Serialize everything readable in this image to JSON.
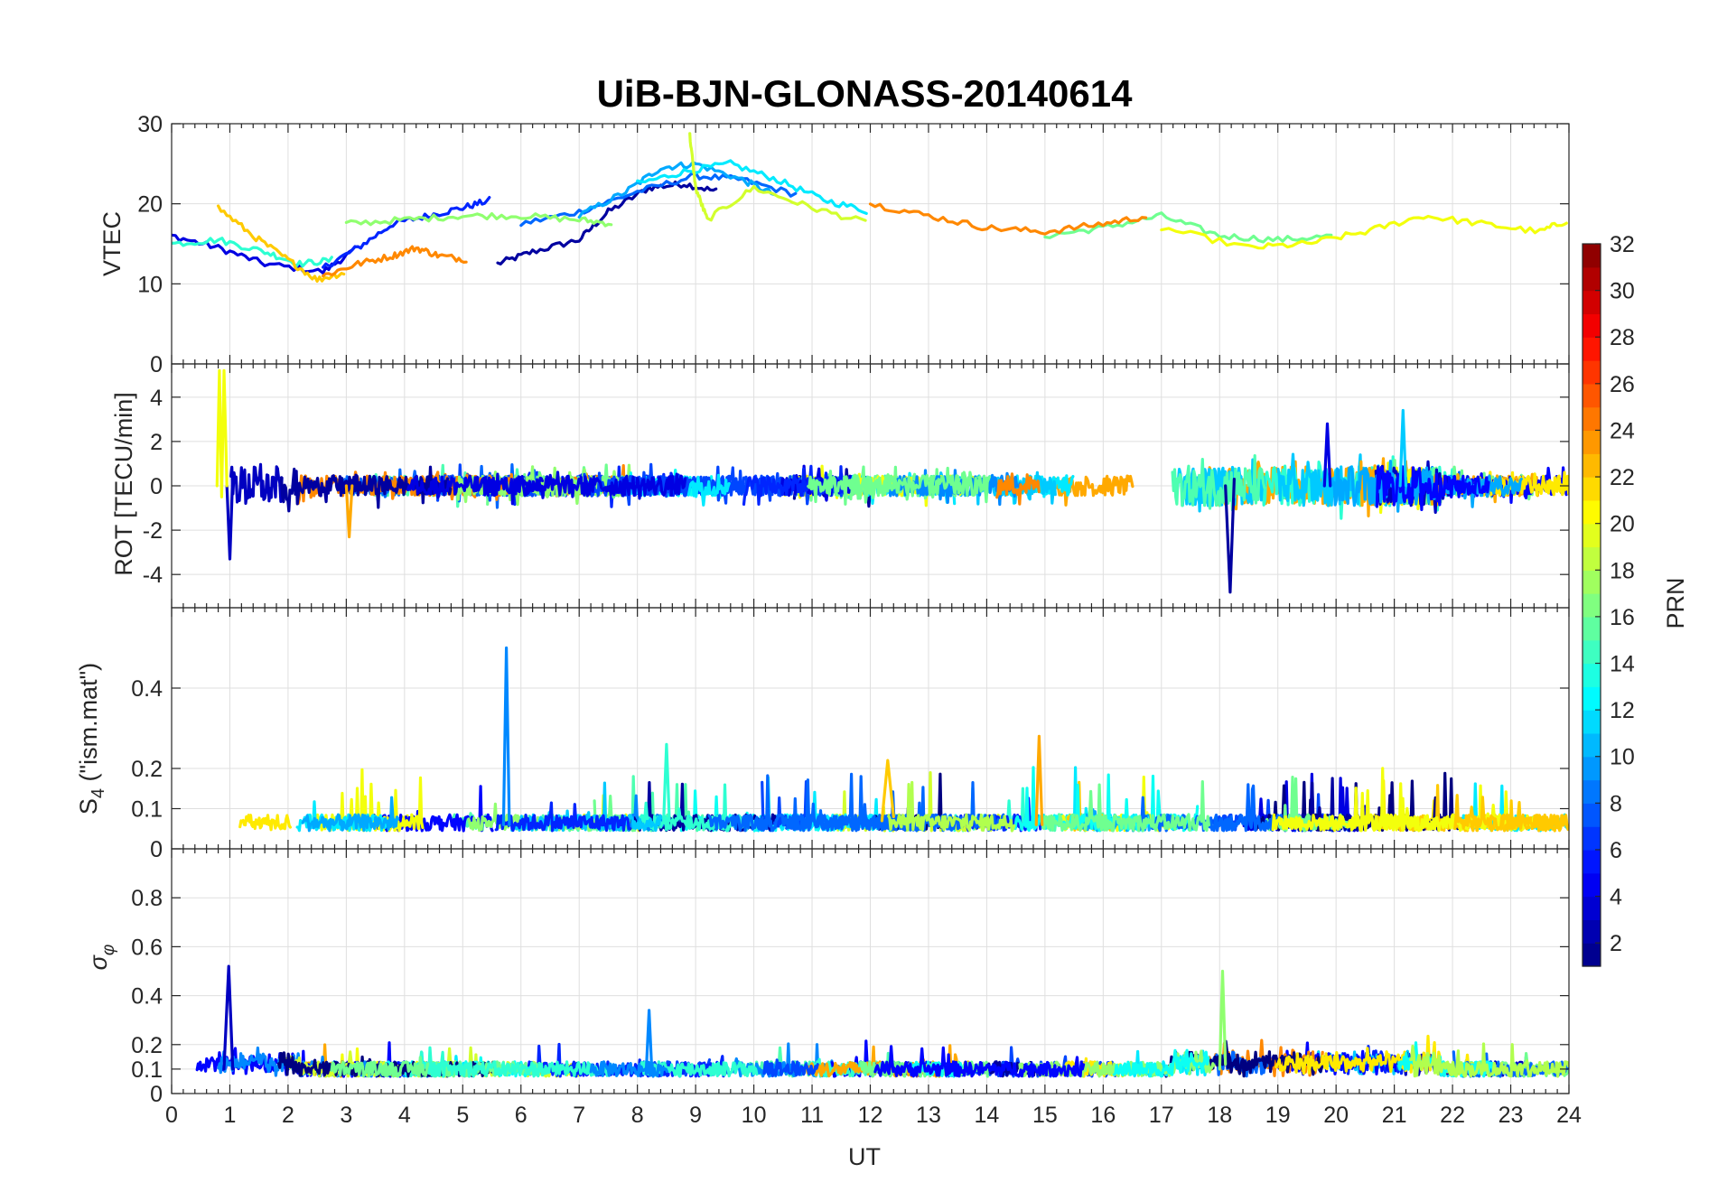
{
  "chart_data": [
    {
      "type": "line",
      "panel": "VTEC",
      "title": "UiB-BJN-GLONASS-20140614",
      "ylabel": "VTEC",
      "xlabel": "",
      "xlim": [
        0,
        24
      ],
      "ylim": [
        0,
        30
      ],
      "yticks": [
        0,
        10,
        20,
        30
      ],
      "series": [
        {
          "name": "PRN 2",
          "prn": 2,
          "x": [
            5.6,
            6.2,
            7.0,
            7.5,
            8.2,
            8.8,
            9.4
          ],
          "values": [
            12.5,
            14.0,
            15.5,
            19.0,
            22.0,
            22.5,
            21.5
          ]
        },
        {
          "name": "PRN 4",
          "prn": 4,
          "x": [
            0.0,
            0.8,
            1.6,
            2.6,
            3.2
          ],
          "values": [
            16.0,
            14.5,
            12.5,
            11.5,
            14.5
          ]
        },
        {
          "name": "PRN 6",
          "prn": 6,
          "x": [
            2.6,
            3.2,
            3.8,
            4.4,
            5.0,
            5.5
          ],
          "values": [
            12.0,
            14.5,
            17.5,
            18.5,
            19.5,
            20.5
          ]
        },
        {
          "name": "PRN 8",
          "prn": 8,
          "x": [
            6.0,
            7.0,
            8.0,
            9.0,
            9.8,
            10.8
          ],
          "values": [
            17.5,
            19.0,
            21.5,
            23.5,
            23.0,
            21.0
          ]
        },
        {
          "name": "PRN 10",
          "prn": 10,
          "x": [
            7.0,
            7.8,
            8.4,
            9.0,
            9.8,
            10.4
          ],
          "values": [
            18.5,
            21.5,
            24.5,
            25.0,
            23.0,
            21.0
          ]
        },
        {
          "name": "PRN 12",
          "prn": 12,
          "x": [
            8.0,
            8.8,
            9.6,
            10.4,
            11.2,
            12.0
          ],
          "values": [
            22.5,
            24.0,
            25.0,
            23.0,
            20.5,
            19.0
          ]
        },
        {
          "name": "PRN 14",
          "prn": 14,
          "x": [
            0.0,
            0.8,
            1.6,
            2.2,
            2.8
          ],
          "values": [
            15.0,
            15.5,
            14.0,
            12.5,
            13.0
          ]
        },
        {
          "name": "PRN 16",
          "prn": 16,
          "x": [
            15.0,
            16.0,
            17.0,
            18.0,
            19.0,
            20.0
          ],
          "values": [
            16.0,
            17.0,
            18.5,
            16.0,
            15.5,
            16.0
          ]
        },
        {
          "name": "PRN 17",
          "prn": 17,
          "x": [
            3.0,
            4.0,
            5.0,
            6.0,
            7.0,
            7.6
          ],
          "values": [
            17.5,
            18.0,
            18.5,
            18.5,
            18.0,
            17.5
          ]
        },
        {
          "name": "PRN 19",
          "prn": 19,
          "x": [
            8.9,
            9.0,
            9.2,
            10.0,
            11.0,
            12.0
          ],
          "values": [
            28.5,
            22.0,
            18.0,
            22.0,
            19.5,
            17.5
          ]
        },
        {
          "name": "PRN 20",
          "prn": 20,
          "x": [
            17.0,
            18.5,
            19.5,
            20.5,
            21.5,
            22.5,
            23.5,
            24.0
          ],
          "values": [
            17.0,
            14.5,
            15.0,
            16.5,
            18.5,
            17.5,
            16.5,
            18.0
          ]
        },
        {
          "name": "PRN 22",
          "prn": 22,
          "x": [
            0.8,
            1.4,
            2.0,
            2.5,
            3.0
          ],
          "values": [
            19.5,
            16.0,
            13.0,
            10.5,
            11.5
          ]
        },
        {
          "name": "PRN 24",
          "prn": 24,
          "x": [
            2.6,
            3.2,
            3.8,
            4.2,
            4.6,
            5.1
          ],
          "values": [
            11.0,
            12.5,
            13.5,
            14.5,
            13.5,
            13.0
          ]
        },
        {
          "name": "PRN 24b",
          "prn": 24,
          "x": [
            12.0,
            13.0,
            14.0,
            15.0,
            16.0,
            16.8
          ],
          "values": [
            20.0,
            18.5,
            17.0,
            16.5,
            17.5,
            18.5
          ]
        }
      ]
    },
    {
      "type": "line",
      "panel": "ROT",
      "ylabel": "ROT [TECU/min]",
      "xlim": [
        0,
        24
      ],
      "ylim": [
        -5.5,
        5.5
      ],
      "yticks": [
        -4,
        -2,
        0,
        2,
        4
      ],
      "series": [
        {
          "name": "PRN 3 spike",
          "prn": 3,
          "x": [
            0.95,
            1.0,
            1.05
          ],
          "values": [
            0.0,
            -3.3,
            0.5
          ]
        },
        {
          "name": "PRN 20 spike",
          "prn": 20,
          "x": [
            0.78,
            0.82,
            0.86,
            0.9,
            0.95
          ],
          "values": [
            0.0,
            5.2,
            -0.5,
            5.2,
            0.0
          ]
        },
        {
          "name": "PRN 2 spike",
          "prn": 2,
          "x": [
            18.1,
            18.18,
            18.25
          ],
          "values": [
            0.0,
            -4.8,
            0.3
          ]
        },
        {
          "name": "PRN 11 spike",
          "prn": 11,
          "x": [
            21.1,
            21.15,
            21.2
          ],
          "values": [
            0.0,
            3.4,
            0.0
          ]
        },
        {
          "name": "PRN 4 spike",
          "prn": 4,
          "x": [
            19.8,
            19.85,
            19.9
          ],
          "values": [
            0.0,
            2.8,
            0.0
          ]
        },
        {
          "name": "PRN 23 dip",
          "prn": 23,
          "x": [
            3.0,
            3.05,
            3.1
          ],
          "values": [
            0.0,
            -2.3,
            0.0
          ]
        }
      ]
    },
    {
      "type": "line",
      "panel": "S4",
      "ylabel": "S4 (\"ism.mat\")",
      "xlim": [
        0,
        24
      ],
      "ylim": [
        0,
        0.6
      ],
      "yticks": [
        0,
        0.1,
        0.2,
        0.4
      ],
      "series": [
        {
          "name": "PRN 9 peak",
          "prn": 9,
          "x": [
            5.7,
            5.75,
            5.8
          ],
          "values": [
            0.06,
            0.5,
            0.06
          ]
        },
        {
          "name": "PRN 23 peak",
          "prn": 23,
          "x": [
            14.85,
            14.9,
            14.95
          ],
          "values": [
            0.06,
            0.28,
            0.06
          ]
        },
        {
          "name": "PRN 22 peak",
          "prn": 22,
          "x": [
            12.2,
            12.3,
            12.4
          ],
          "values": [
            0.07,
            0.22,
            0.08
          ]
        },
        {
          "name": "PRN 14 peak",
          "prn": 14,
          "x": [
            8.45,
            8.5,
            8.55
          ],
          "values": [
            0.07,
            0.26,
            0.07
          ]
        }
      ]
    },
    {
      "type": "line",
      "panel": "sigma_phi",
      "ylabel": "σφ",
      "xlabel": "UT",
      "xlim": [
        0,
        24
      ],
      "ylim": [
        0,
        1
      ],
      "yticks": [
        0,
        0.1,
        0.2,
        0.4,
        0.6,
        0.8
      ],
      "series": [
        {
          "name": "PRN 3 peak",
          "prn": 3,
          "x": [
            0.9,
            0.98,
            1.05
          ],
          "values": [
            0.1,
            0.52,
            0.1
          ]
        },
        {
          "name": "PRN 17 peak",
          "prn": 17,
          "x": [
            18.0,
            18.05,
            18.1
          ],
          "values": [
            0.1,
            0.5,
            0.12
          ]
        },
        {
          "name": "PRN 9 peak",
          "prn": 9,
          "x": [
            8.15,
            8.2,
            8.25
          ],
          "values": [
            0.08,
            0.34,
            0.08
          ]
        }
      ]
    }
  ],
  "colorbar": {
    "label": "PRN",
    "min": 1,
    "max": 32,
    "ticks": [
      "2",
      "4",
      "6",
      "8",
      "10",
      "12",
      "14",
      "16",
      "18",
      "20",
      "22",
      "24",
      "26",
      "28",
      "30",
      "32"
    ]
  },
  "x_ticks": [
    "0",
    "1",
    "2",
    "3",
    "4",
    "5",
    "6",
    "7",
    "8",
    "9",
    "10",
    "11",
    "12",
    "13",
    "14",
    "15",
    "16",
    "17",
    "18",
    "19",
    "20",
    "21",
    "22",
    "23",
    "24"
  ],
  "labels": {
    "title": "UiB-BJN-GLONASS-20140614",
    "vtec": "VTEC",
    "rot": "ROT [TECU/min]",
    "s4_main": "S",
    "s4_sub": "4",
    "s4_rest": " (\"ism.mat\")",
    "sigma_main": "σ",
    "sigma_sub": "φ",
    "xlabel": "UT"
  }
}
